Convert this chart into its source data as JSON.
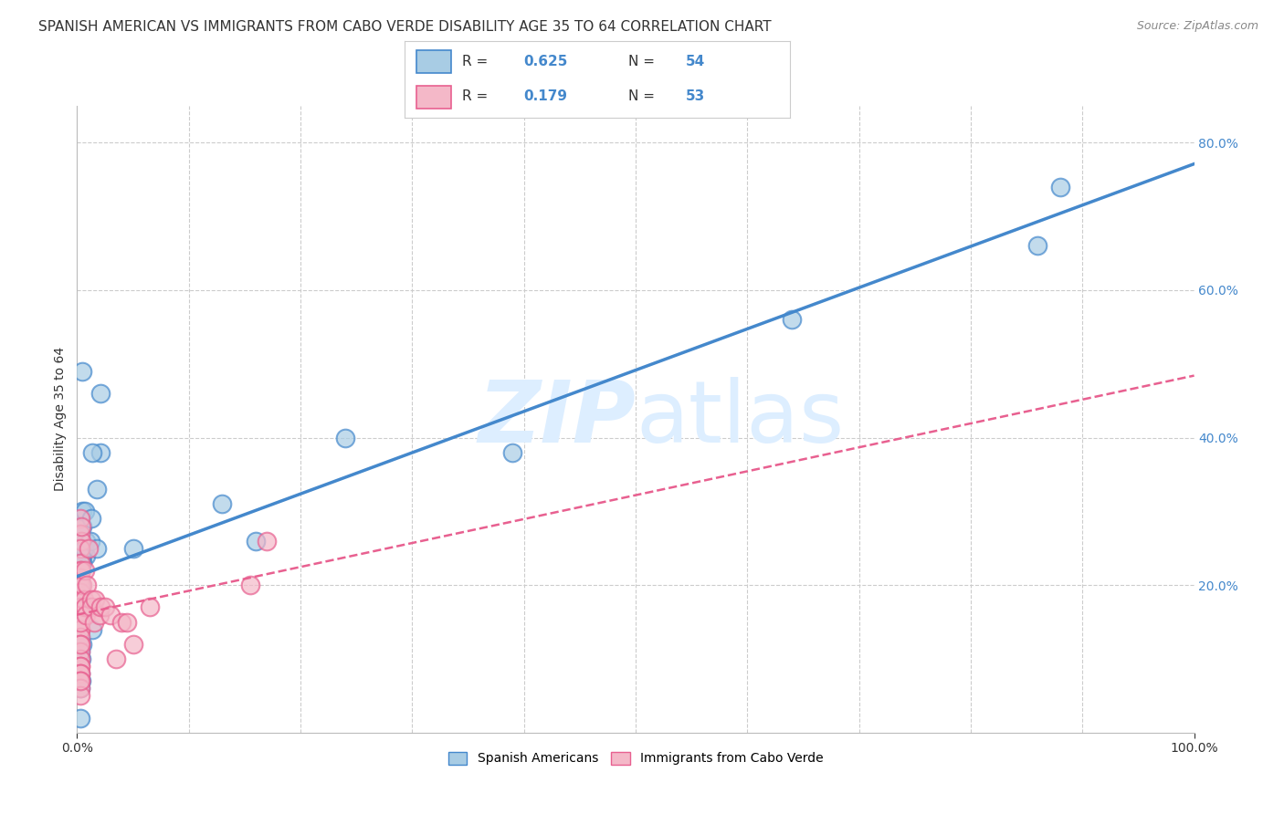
{
  "title": "SPANISH AMERICAN VS IMMIGRANTS FROM CABO VERDE DISABILITY AGE 35 TO 64 CORRELATION CHART",
  "source": "Source: ZipAtlas.com",
  "ylabel": "Disability Age 35 to 64",
  "legend_label1": "Spanish Americans",
  "legend_label2": "Immigrants from Cabo Verde",
  "R1": 0.625,
  "N1": 54,
  "R2": 0.179,
  "N2": 53,
  "blue_color": "#a8cce4",
  "pink_color": "#f4b8c8",
  "blue_line_color": "#4488cc",
  "pink_line_color": "#e86090",
  "watermark_color": "#ddeeff",
  "blue_x": [
    0.021,
    0.018,
    0.005,
    0.008,
    0.003,
    0.003,
    0.003,
    0.003,
    0.004,
    0.005,
    0.004,
    0.008,
    0.003,
    0.003,
    0.004,
    0.005,
    0.006,
    0.003,
    0.003,
    0.003,
    0.004,
    0.003,
    0.003,
    0.005,
    0.003,
    0.005,
    0.004,
    0.007,
    0.003,
    0.003,
    0.003,
    0.003,
    0.004,
    0.003,
    0.003,
    0.012,
    0.018,
    0.013,
    0.021,
    0.014,
    0.05,
    0.16,
    0.13,
    0.24,
    0.39,
    0.64,
    0.88,
    0.004,
    0.003,
    0.003,
    0.005,
    0.003,
    0.014,
    0.86
  ],
  "blue_y": [
    0.46,
    0.33,
    0.49,
    0.24,
    0.22,
    0.25,
    0.26,
    0.27,
    0.25,
    0.24,
    0.23,
    0.26,
    0.19,
    0.21,
    0.24,
    0.23,
    0.25,
    0.28,
    0.2,
    0.16,
    0.17,
    0.22,
    0.18,
    0.28,
    0.17,
    0.3,
    0.23,
    0.3,
    0.15,
    0.13,
    0.12,
    0.11,
    0.07,
    0.07,
    0.08,
    0.26,
    0.25,
    0.29,
    0.38,
    0.38,
    0.25,
    0.26,
    0.31,
    0.4,
    0.38,
    0.56,
    0.74,
    0.1,
    0.06,
    0.07,
    0.12,
    0.02,
    0.14,
    0.66
  ],
  "pink_x": [
    0.003,
    0.003,
    0.004,
    0.003,
    0.003,
    0.003,
    0.003,
    0.003,
    0.003,
    0.003,
    0.003,
    0.003,
    0.003,
    0.003,
    0.003,
    0.003,
    0.003,
    0.004,
    0.003,
    0.003,
    0.003,
    0.003,
    0.003,
    0.003,
    0.003,
    0.003,
    0.004,
    0.005,
    0.006,
    0.007,
    0.007,
    0.008,
    0.009,
    0.01,
    0.013,
    0.013,
    0.015,
    0.016,
    0.02,
    0.021,
    0.025,
    0.03,
    0.035,
    0.04,
    0.045,
    0.05,
    0.065,
    0.155,
    0.17,
    0.003,
    0.003,
    0.003,
    0.003
  ],
  "pink_y": [
    0.29,
    0.27,
    0.26,
    0.25,
    0.23,
    0.22,
    0.21,
    0.2,
    0.19,
    0.18,
    0.17,
    0.16,
    0.15,
    0.14,
    0.14,
    0.13,
    0.12,
    0.28,
    0.11,
    0.1,
    0.09,
    0.09,
    0.08,
    0.08,
    0.12,
    0.15,
    0.22,
    0.2,
    0.18,
    0.22,
    0.17,
    0.16,
    0.2,
    0.25,
    0.18,
    0.17,
    0.15,
    0.18,
    0.16,
    0.17,
    0.17,
    0.16,
    0.1,
    0.15,
    0.15,
    0.12,
    0.17,
    0.2,
    0.26,
    0.07,
    0.06,
    0.05,
    0.07
  ],
  "xlim": [
    0.0,
    1.0
  ],
  "ylim": [
    0.0,
    0.85
  ],
  "ytick_vals": [
    0.2,
    0.4,
    0.6,
    0.8
  ],
  "ytick_labels": [
    "20.0%",
    "40.0%",
    "60.0%",
    "80.0%"
  ],
  "grid_color": "#cccccc",
  "background_color": "#ffffff",
  "title_fontsize": 11,
  "label_fontsize": 10,
  "tick_fontsize": 10,
  "source_fontsize": 9
}
